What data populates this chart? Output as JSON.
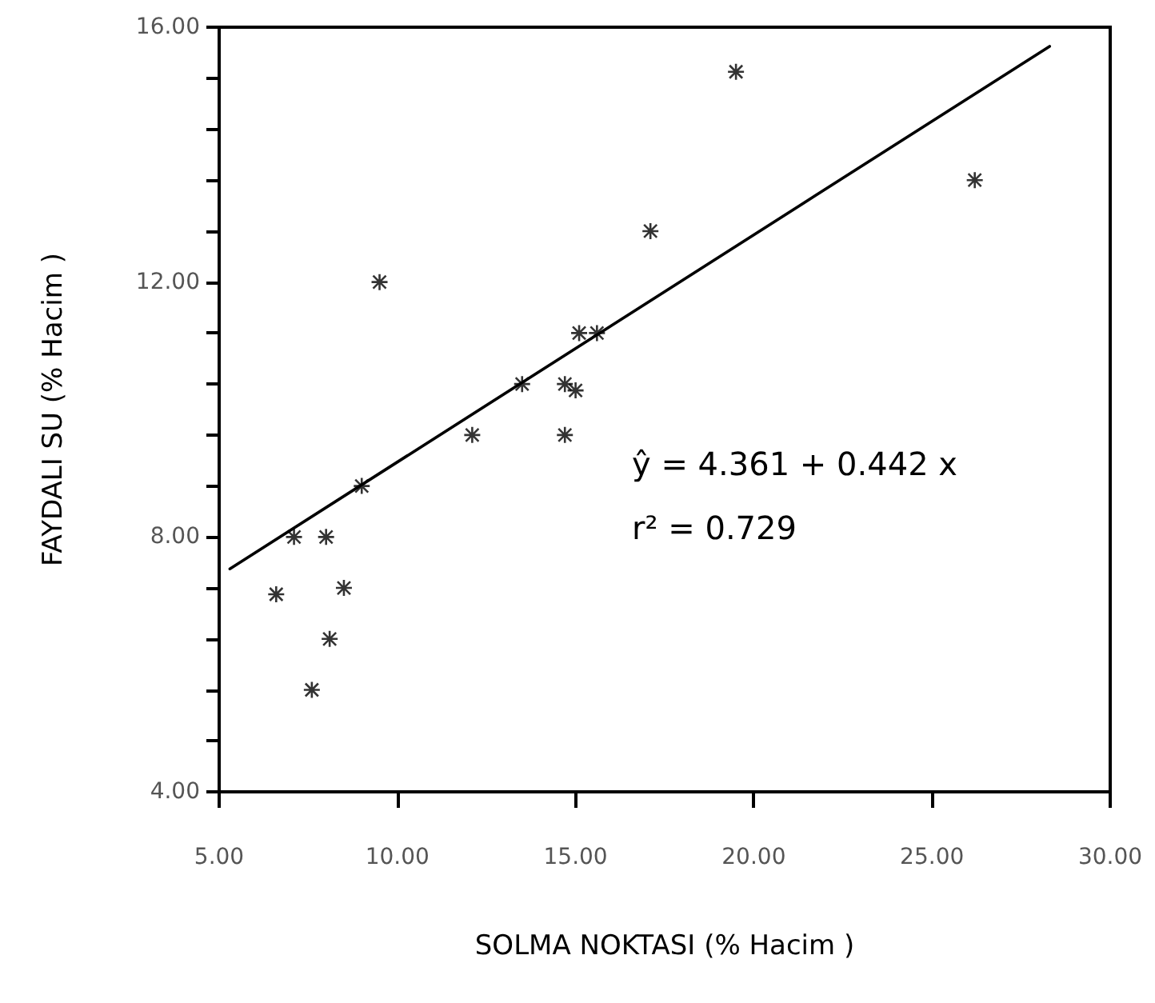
{
  "chart_data": {
    "type": "scatter",
    "xlabel": "SOLMA NOKTASI (% Hacim )",
    "ylabel": "FAYDALI SU (% Hacim )",
    "xlim": [
      5,
      30
    ],
    "ylim": [
      4,
      16
    ],
    "xticks": [
      {
        "value": 5,
        "label": "5.00"
      },
      {
        "value": 10,
        "label": "10.00"
      },
      {
        "value": 15,
        "label": "15.00"
      },
      {
        "value": 20,
        "label": "20.00"
      },
      {
        "value": 25,
        "label": "25.00"
      },
      {
        "value": 30,
        "label": "30.00"
      }
    ],
    "yticks": [
      {
        "value": 4,
        "label": "4.00"
      },
      {
        "value": 4.8,
        "label": null
      },
      {
        "value": 5.6,
        "label": null
      },
      {
        "value": 6.4,
        "label": null
      },
      {
        "value": 7.2,
        "label": null
      },
      {
        "value": 8,
        "label": "8.00"
      },
      {
        "value": 8.8,
        "label": null
      },
      {
        "value": 9.6,
        "label": null
      },
      {
        "value": 10.4,
        "label": null
      },
      {
        "value": 11.2,
        "label": null
      },
      {
        "value": 12,
        "label": "12.00"
      },
      {
        "value": 12.8,
        "label": null
      },
      {
        "value": 13.6,
        "label": null
      },
      {
        "value": 14.4,
        "label": null
      },
      {
        "value": 15.2,
        "label": null
      },
      {
        "value": 16,
        "label": "16.00"
      }
    ],
    "grid": false,
    "marker": "cross",
    "series": [
      {
        "color": "#000000",
        "x": [
          6.6,
          7.1,
          7.6,
          8.0,
          8.1,
          8.5,
          9.0,
          9.5,
          12.1,
          13.5,
          14.7,
          15.0,
          14.7,
          15.1,
          15.6,
          17.1,
          19.5,
          26.2
        ],
        "values": [
          7.1,
          8.0,
          5.6,
          8.0,
          6.4,
          7.2,
          8.8,
          12.0,
          9.6,
          10.4,
          10.4,
          10.3,
          9.6,
          11.2,
          11.2,
          12.8,
          15.3,
          13.6
        ]
      },
      {
        "type": "line",
        "color": "#000000",
        "marker": "none",
        "line_style": "solid",
        "x": [
          5.3,
          28.3
        ],
        "values": [
          7.5,
          15.7
        ]
      }
    ],
    "annotations": [
      "ŷ = 4.361 + 0.442 x",
      "r² = 0.729"
    ]
  }
}
